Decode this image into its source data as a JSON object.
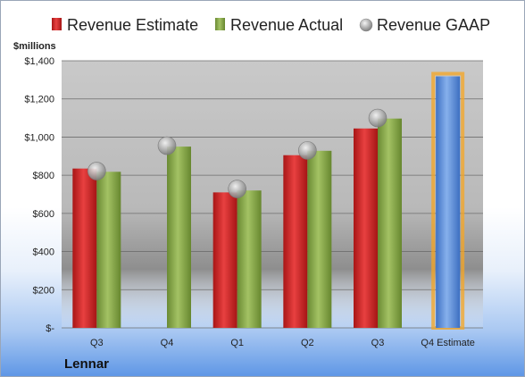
{
  "chart_data": {
    "type": "bar",
    "title": "",
    "ylabel": "$millions",
    "categories": [
      "Q3",
      "Q4",
      "Q1",
      "Q2",
      "Q3",
      "Q4 Estimate"
    ],
    "ylim": [
      0,
      1400
    ],
    "yticks": [
      0,
      200,
      400,
      600,
      800,
      1000,
      1200,
      1400
    ],
    "ytick_labels": [
      "$-",
      "$200",
      "$400",
      "$600",
      "$800",
      "$1,000",
      "$1,200",
      "$1,400"
    ],
    "legend_position": "top",
    "grid": true,
    "series": [
      {
        "name": "Revenue Estimate",
        "type": "bar",
        "color": "#d42a2a",
        "values": [
          835,
          null,
          710,
          905,
          1045,
          null
        ]
      },
      {
        "name": "Revenue Actual",
        "type": "bar",
        "color": "#8aab4c",
        "values": [
          818,
          950,
          720,
          928,
          1097,
          null
        ]
      },
      {
        "name": "Revenue GAAP",
        "type": "scatter",
        "color": "#9a9a9a",
        "values": [
          822,
          955,
          728,
          930,
          1100,
          null
        ]
      },
      {
        "name": "",
        "type": "bar",
        "color": "#5b8fd8",
        "highlight": "#f5a623",
        "values": [
          null,
          null,
          null,
          null,
          null,
          1318
        ]
      }
    ],
    "company": "Lennar"
  }
}
